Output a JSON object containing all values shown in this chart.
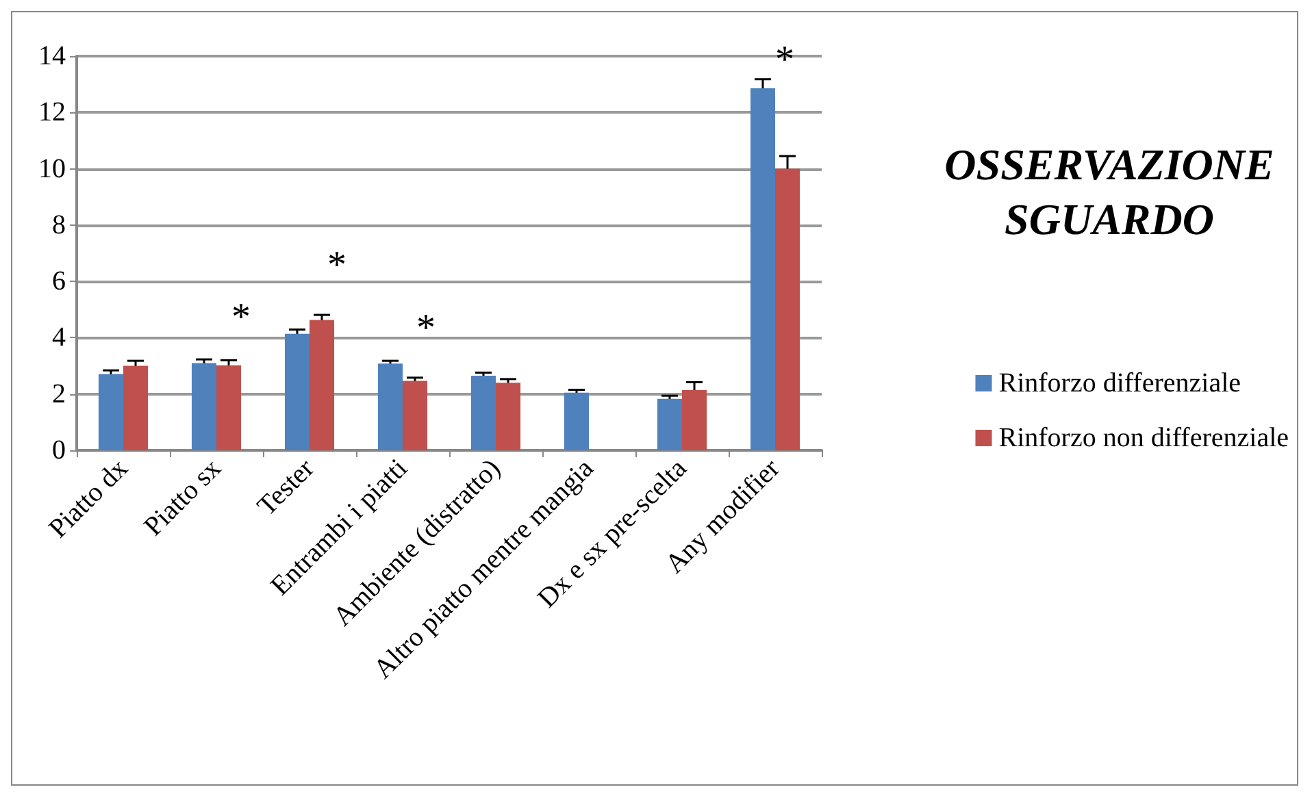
{
  "chart_data": {
    "type": "bar",
    "title": "OSSERVAZIONE\nSGUARDO",
    "categories": [
      "Piatto dx",
      "Piatto sx",
      "Tester",
      "Entrambi i piatti",
      "Ambiente (distratto)",
      "Altro piatto mentre mangia",
      "Dx e sx pre-scelta",
      "Any modifier"
    ],
    "series": [
      {
        "name": "Rinforzo differenziale",
        "color": "#4f81bd",
        "values": [
          2.71,
          3.1,
          4.14,
          3.08,
          2.65,
          2.05,
          1.83,
          12.86
        ],
        "errors": [
          0.13,
          0.13,
          0.15,
          0.1,
          0.11,
          0.1,
          0.11,
          0.32
        ]
      },
      {
        "name": "Rinforzo non differenziale",
        "color": "#c0504d",
        "values": [
          3.0,
          3.02,
          4.63,
          2.47,
          2.4,
          null,
          2.14,
          10.0
        ],
        "errors": [
          0.18,
          0.18,
          0.18,
          0.11,
          0.13,
          null,
          0.28,
          0.45
        ]
      }
    ],
    "ylim": [
      0,
      14
    ],
    "yticks": [
      0,
      2,
      4,
      6,
      8,
      10,
      12,
      14
    ],
    "grid": "y",
    "legend": "right",
    "annotations": [
      "*",
      "*",
      "*",
      "*"
    ]
  }
}
